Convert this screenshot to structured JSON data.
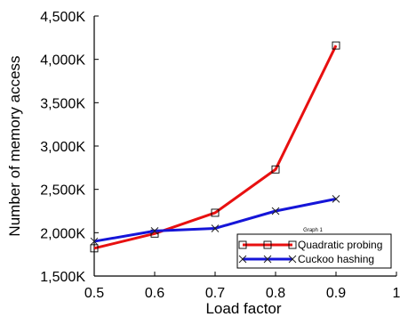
{
  "chart_data": {
    "type": "line",
    "xlabel": "Load factor",
    "ylabel": "Number of memory access",
    "xlim": [
      0.5,
      1
    ],
    "ylim": [
      1500,
      4500
    ],
    "x_ticks": [
      "0.5",
      "0.6",
      "0.7",
      "0.8",
      "0.9",
      "1"
    ],
    "x_tick_values": [
      0.5,
      0.6,
      0.7,
      0.8,
      0.9,
      1.0
    ],
    "y_ticks": [
      "1,500K",
      "2,000K",
      "2,500K",
      "3,000K",
      "3,500K",
      "4,000K",
      "4,500K"
    ],
    "y_tick_values": [
      1500,
      2000,
      2500,
      3000,
      3500,
      4000,
      4500
    ],
    "y_unit": "K",
    "grid": false,
    "legend": {
      "title": "Graph 1",
      "position": "bottom-right",
      "items": [
        "Quadratic probing",
        "Cuckoo hashing"
      ]
    },
    "x": [
      0.5,
      0.6,
      0.7,
      0.8,
      0.9
    ],
    "series": [
      {
        "name": "Quadratic probing",
        "color": "#e81010",
        "marker": "square",
        "values": [
          1820,
          1990,
          2230,
          2730,
          4160
        ]
      },
      {
        "name": "Cuckoo hashing",
        "color": "#1515d8",
        "marker": "x",
        "values": [
          1900,
          2020,
          2050,
          2250,
          2390
        ]
      }
    ]
  }
}
